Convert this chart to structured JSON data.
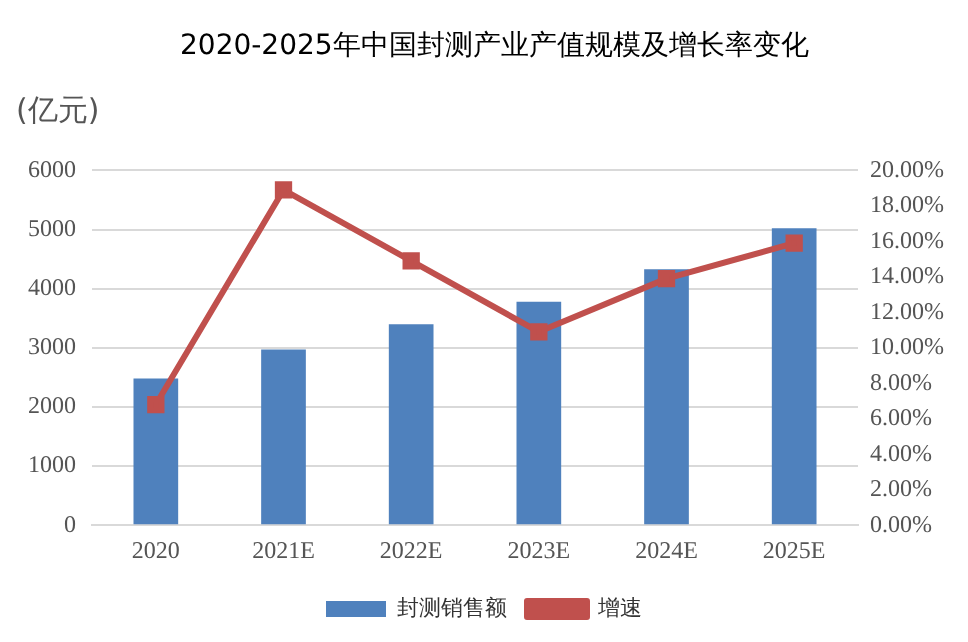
{
  "chart_data": {
    "type": "bar",
    "title": "2020-2025年中国封测产业产值规模及增长率变化",
    "ylabel": "(亿元)",
    "categories": [
      "2020",
      "2021E",
      "2022E",
      "2023E",
      "2024E",
      "2025E"
    ],
    "series": [
      {
        "name": "封测销售额",
        "color": "#4f81bd",
        "values": [
          2480,
          2970,
          3400,
          3780,
          4330,
          5020
        ]
      },
      {
        "name": "增速",
        "type": "line",
        "axis": "y2",
        "color": "#c0504d",
        "values": [
          6.8,
          18.9,
          14.9,
          10.9,
          13.9,
          15.9
        ]
      }
    ],
    "ylim": [
      0,
      6000
    ],
    "yticks": [
      0,
      1000,
      2000,
      3000,
      4000,
      5000,
      6000
    ],
    "y2lim": [
      0,
      20
    ],
    "y2ticks": [
      {
        "value": 0,
        "label": "0.00%"
      },
      {
        "value": 2,
        "label": "2.00%"
      },
      {
        "value": 4,
        "label": "4.00%"
      },
      {
        "value": 6,
        "label": "6.00%"
      },
      {
        "value": 8,
        "label": "8.00%"
      },
      {
        "value": 10,
        "label": "10.00%"
      },
      {
        "value": 12,
        "label": "12.00%"
      },
      {
        "value": 14,
        "label": "14.00%"
      },
      {
        "value": 16,
        "label": "16.00%"
      },
      {
        "value": 18,
        "label": "18.00%"
      },
      {
        "value": 20,
        "label": "20.00%"
      }
    ],
    "grid": "y",
    "legend": "bottom",
    "marker": "square"
  }
}
